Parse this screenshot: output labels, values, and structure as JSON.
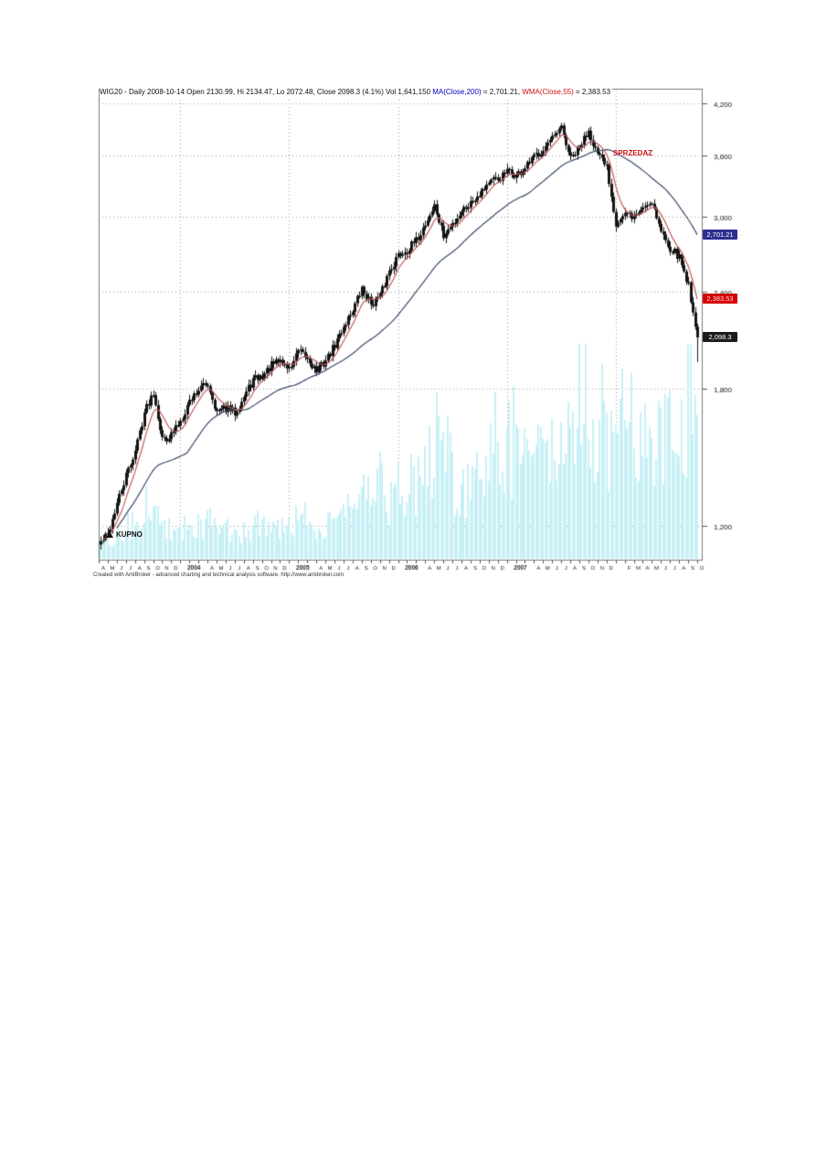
{
  "page": {
    "background": "#ffffff"
  },
  "chart": {
    "title": {
      "seg_main": "WIG20 - Daily 2008-10-14 Open 2130.99, Hi 2134.47, Lo 2072.48, Close 2098.3 (4.1%) Vol 1,641,150 ",
      "seg_ma": "MA(Close,200)",
      "seg_ma_val": " = 2,701.21, ",
      "seg_wma": "WMA(Close,55)",
      "seg_wma_val": " = 2,383.53"
    },
    "badges": {
      "ma": {
        "label": "2,701.21",
        "color": "#2d2f90"
      },
      "wma": {
        "label": "2,383.53",
        "color": "#d40000"
      },
      "close": {
        "label": "2,098.3",
        "color": "#1c1c1c"
      }
    },
    "annotations": {
      "buy": "KUPNO",
      "sell": "SPRZEDAZ"
    },
    "footer": "Created with AmiBroker - advanced charting and technical analysis software. http://www.amibroker.com"
  },
  "chart_data": {
    "type": "candlestick",
    "symbol": "WIG20",
    "interval": "Daily",
    "last_bar": {
      "date": "2008-10-14",
      "open": 2130.99,
      "high": 2134.47,
      "low": 2072.48,
      "close": 2098.3,
      "change_pct": "4.1%",
      "volume": "1,641,150"
    },
    "scale": "log",
    "grid": "dotted",
    "y_domain": [
      1085,
      4390
    ],
    "y_ticks": [
      {
        "v": 4200,
        "label": "4,200"
      },
      {
        "v": 3600,
        "label": "3,600"
      },
      {
        "v": 3000,
        "label": "3,000"
      },
      {
        "v": 2400,
        "label": "2,400"
      },
      {
        "v": 1800,
        "label": "1,800"
      },
      {
        "v": 1200,
        "label": "1,200"
      }
    ],
    "x_months_total": 66.5,
    "x_axis": {
      "months_2003": [
        "A",
        "M",
        "J",
        "J",
        "A",
        "S",
        "O",
        "N",
        "D"
      ],
      "years": [
        "2004",
        "2005",
        "2006",
        "2007"
      ],
      "months_after_year": [
        "A",
        "M",
        "J",
        "J",
        "A",
        "S",
        "O",
        "N",
        "D"
      ],
      "months_2008": [
        "F",
        "M",
        "A",
        "M",
        "J",
        "J",
        "A",
        "S",
        "O"
      ],
      "year_grid_month_offsets": [
        9,
        21,
        33,
        45,
        57
      ]
    },
    "monthly_closes": [
      1135,
      1170,
      1280,
      1390,
      1500,
      1680,
      1790,
      1550,
      1570,
      1640,
      1740,
      1800,
      1830,
      1680,
      1700,
      1680,
      1760,
      1850,
      1870,
      1930,
      1960,
      1910,
      2010,
      1970,
      1900,
      1960,
      2050,
      2170,
      2280,
      2420,
      2320,
      2370,
      2560,
      2680,
      2720,
      2790,
      2940,
      3100,
      2830,
      2940,
      3060,
      3130,
      3230,
      3330,
      3350,
      3430,
      3390,
      3460,
      3580,
      3680,
      3770,
      3900,
      3560,
      3680,
      3890,
      3600,
      3480,
      2950,
      3020,
      3000,
      3090,
      3150,
      2870,
      2740,
      2660,
      2450,
      2098.3
    ],
    "monthly_volume_rel": [
      6,
      7,
      8,
      9,
      11,
      13,
      15,
      11,
      9,
      12,
      12,
      13,
      14,
      12,
      11,
      10,
      11,
      13,
      13,
      14,
      13,
      14,
      15,
      14,
      13,
      14,
      16,
      18,
      20,
      23,
      20,
      19,
      22,
      27,
      28,
      29,
      33,
      50,
      46,
      30,
      28,
      31,
      33,
      37,
      33,
      40,
      44,
      41,
      38,
      41,
      45,
      54,
      58,
      45,
      50,
      52,
      41,
      54,
      49,
      45,
      41,
      43,
      47,
      45,
      43,
      62,
      74
    ],
    "series": [
      {
        "name": "Price",
        "type": "candles",
        "color": "#141414"
      },
      {
        "name": "MA(Close,200)",
        "type": "line",
        "color": "#3a4a6b",
        "last_value": 2701.21
      },
      {
        "name": "WMA(Close,55)",
        "type": "line",
        "color": "#c25b5b",
        "last_value": 2383.53
      },
      {
        "name": "Volume",
        "type": "bars",
        "color": "#c7f0f6"
      }
    ],
    "colors": {
      "grid": "#999999",
      "frame": "#7a7a7a",
      "axis_text": "#111111"
    }
  }
}
